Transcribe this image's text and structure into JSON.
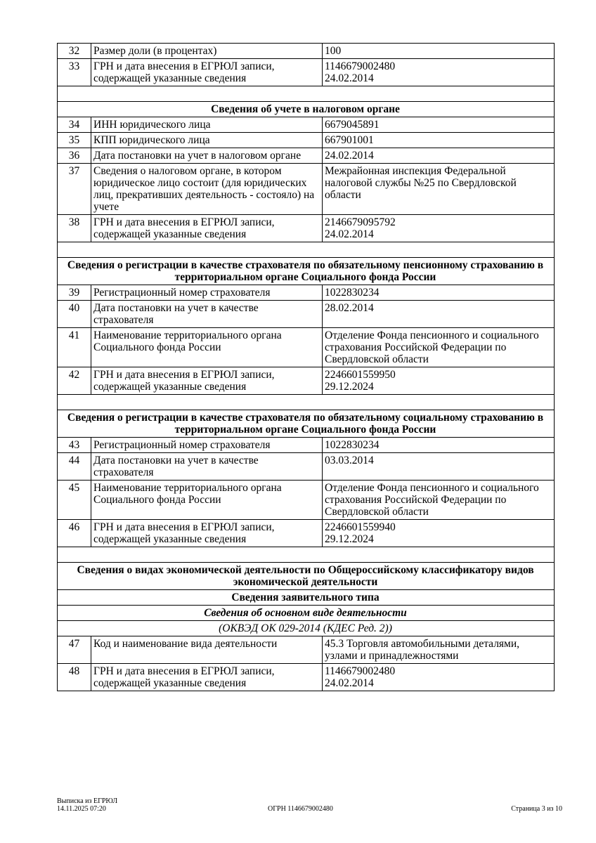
{
  "rows": [
    {
      "type": "data",
      "num": "32",
      "label": "Размер доли (в процентах)",
      "value": "100"
    },
    {
      "type": "data",
      "num": "33",
      "label": "ГРН и дата внесения в ЕГРЮЛ записи, содержащей указанные сведения",
      "value": "1146679002480\n24.02.2014"
    },
    {
      "type": "empty"
    },
    {
      "type": "head",
      "text": "Сведения об учете в налоговом органе"
    },
    {
      "type": "data",
      "num": "34",
      "label": "ИНН юридического лица",
      "value": "6679045891"
    },
    {
      "type": "data",
      "num": "35",
      "label": "КПП юридического лица",
      "value": "667901001"
    },
    {
      "type": "data",
      "num": "36",
      "label": "Дата постановки на учет в налоговом органе",
      "value": "24.02.2014"
    },
    {
      "type": "data",
      "num": "37",
      "label": "Сведения о налоговом органе, в котором юридическое лицо состоит (для юридических лиц, прекративших деятельность - состояло) на учете",
      "value": "Межрайонная инспекция Федеральной налоговой службы №25 по Свердловской области"
    },
    {
      "type": "data",
      "num": "38",
      "label": "ГРН и дата внесения в ЕГРЮЛ записи, содержащей указанные сведения",
      "value": "2146679095792\n24.02.2014"
    },
    {
      "type": "empty"
    },
    {
      "type": "head",
      "text": "Сведения о регистрации в качестве страхователя по обязательному пенсионному страхованию в территориальном органе Социального фонда России"
    },
    {
      "type": "data",
      "num": "39",
      "label": "Регистрационный номер страхователя",
      "value": "1022830234"
    },
    {
      "type": "data",
      "num": "40",
      "label": "Дата постановки на учет в качестве страхователя",
      "value": "28.02.2014"
    },
    {
      "type": "data",
      "num": "41",
      "label": "Наименование территориального органа Социального фонда России",
      "value": "Отделение Фонда пенсионного и социального страхования Российской Федерации по Свердловской области"
    },
    {
      "type": "data",
      "num": "42",
      "label": "ГРН и дата внесения в ЕГРЮЛ записи, содержащей указанные сведения",
      "value": "2246601559950\n29.12.2024"
    },
    {
      "type": "empty"
    },
    {
      "type": "head",
      "text": "Сведения о регистрации в качестве страхователя по обязательному социальному страхованию в территориальном органе Социального фонда России"
    },
    {
      "type": "data",
      "num": "43",
      "label": "Регистрационный номер страхователя",
      "value": "1022830234"
    },
    {
      "type": "data",
      "num": "44",
      "label": "Дата постановки на учет в качестве страхователя",
      "value": "03.03.2014"
    },
    {
      "type": "data",
      "num": "45",
      "label": "Наименование территориального органа Социального фонда России",
      "value": "Отделение Фонда пенсионного и социального страхования Российской Федерации по Свердловской области"
    },
    {
      "type": "data",
      "num": "46",
      "label": "ГРН и дата внесения в ЕГРЮЛ записи, содержащей указанные сведения",
      "value": "2246601559940\n29.12.2024"
    },
    {
      "type": "empty"
    },
    {
      "type": "head",
      "text": "Сведения о видах экономической деятельности по Общероссийскому классификатору видов экономической деятельности"
    },
    {
      "type": "head",
      "text": "Сведения заявительного типа"
    },
    {
      "type": "ital-bold",
      "text": "Сведения об основном виде деятельности"
    },
    {
      "type": "ital",
      "text": "(ОКВЭД ОК 029-2014 (КДЕС Ред. 2))"
    },
    {
      "type": "data",
      "num": "47",
      "label": "Код и наименование вида деятельности",
      "value": "45.3 Торговля автомобильными деталями, узлами и принадлежностями"
    },
    {
      "type": "data",
      "num": "48",
      "label": "ГРН и дата внесения в ЕГРЮЛ записи, содержащей указанные сведения",
      "value": "1146679002480\n24.02.2014"
    }
  ],
  "footer": {
    "doc_title": "Выписка из ЕГРЮЛ",
    "datetime": "14.11.2025 07:20",
    "ogrn": "ОГРН 1146679002480",
    "page": "Страница 3 из 10"
  }
}
